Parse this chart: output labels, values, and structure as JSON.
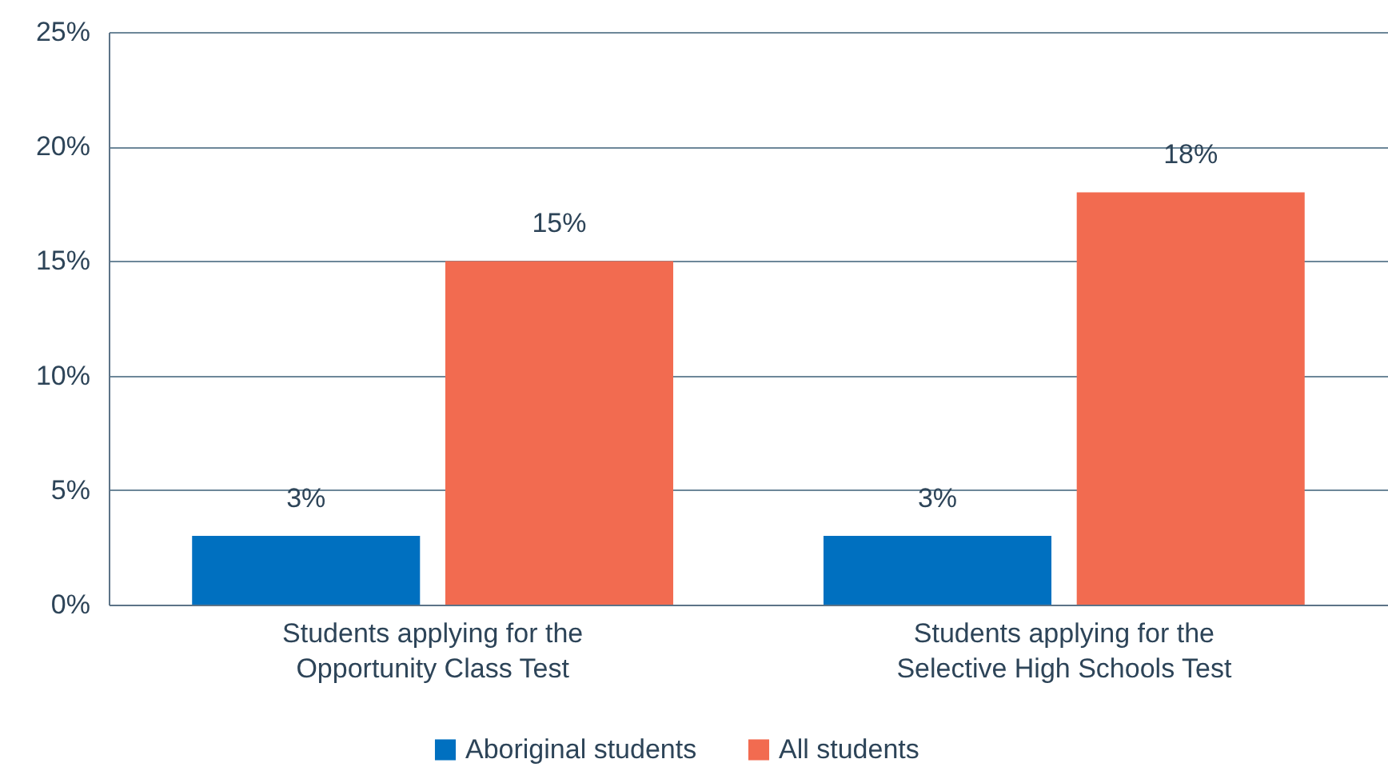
{
  "chart_data": {
    "type": "bar",
    "categories": [
      "Students applying for the Opportunity Class Test",
      "Students applying for the Selective High Schools Test"
    ],
    "series": [
      {
        "name": "Aboriginal students",
        "color": "#0070c0",
        "values": [
          3,
          3
        ],
        "value_labels": [
          "3%",
          "3%"
        ]
      },
      {
        "name": "All students",
        "color": "#f26b50",
        "values": [
          15,
          18
        ],
        "value_labels": [
          "15%",
          "18%"
        ]
      }
    ],
    "ylim": [
      0,
      25
    ],
    "yticks": [
      {
        "value": 0,
        "label": "0%"
      },
      {
        "value": 5,
        "label": "5%"
      },
      {
        "value": 10,
        "label": "10%"
      },
      {
        "value": 15,
        "label": "15%"
      },
      {
        "value": 20,
        "label": "20%"
      },
      {
        "value": 25,
        "label": "25%"
      }
    ],
    "grid": "y",
    "legend": "bottom"
  }
}
